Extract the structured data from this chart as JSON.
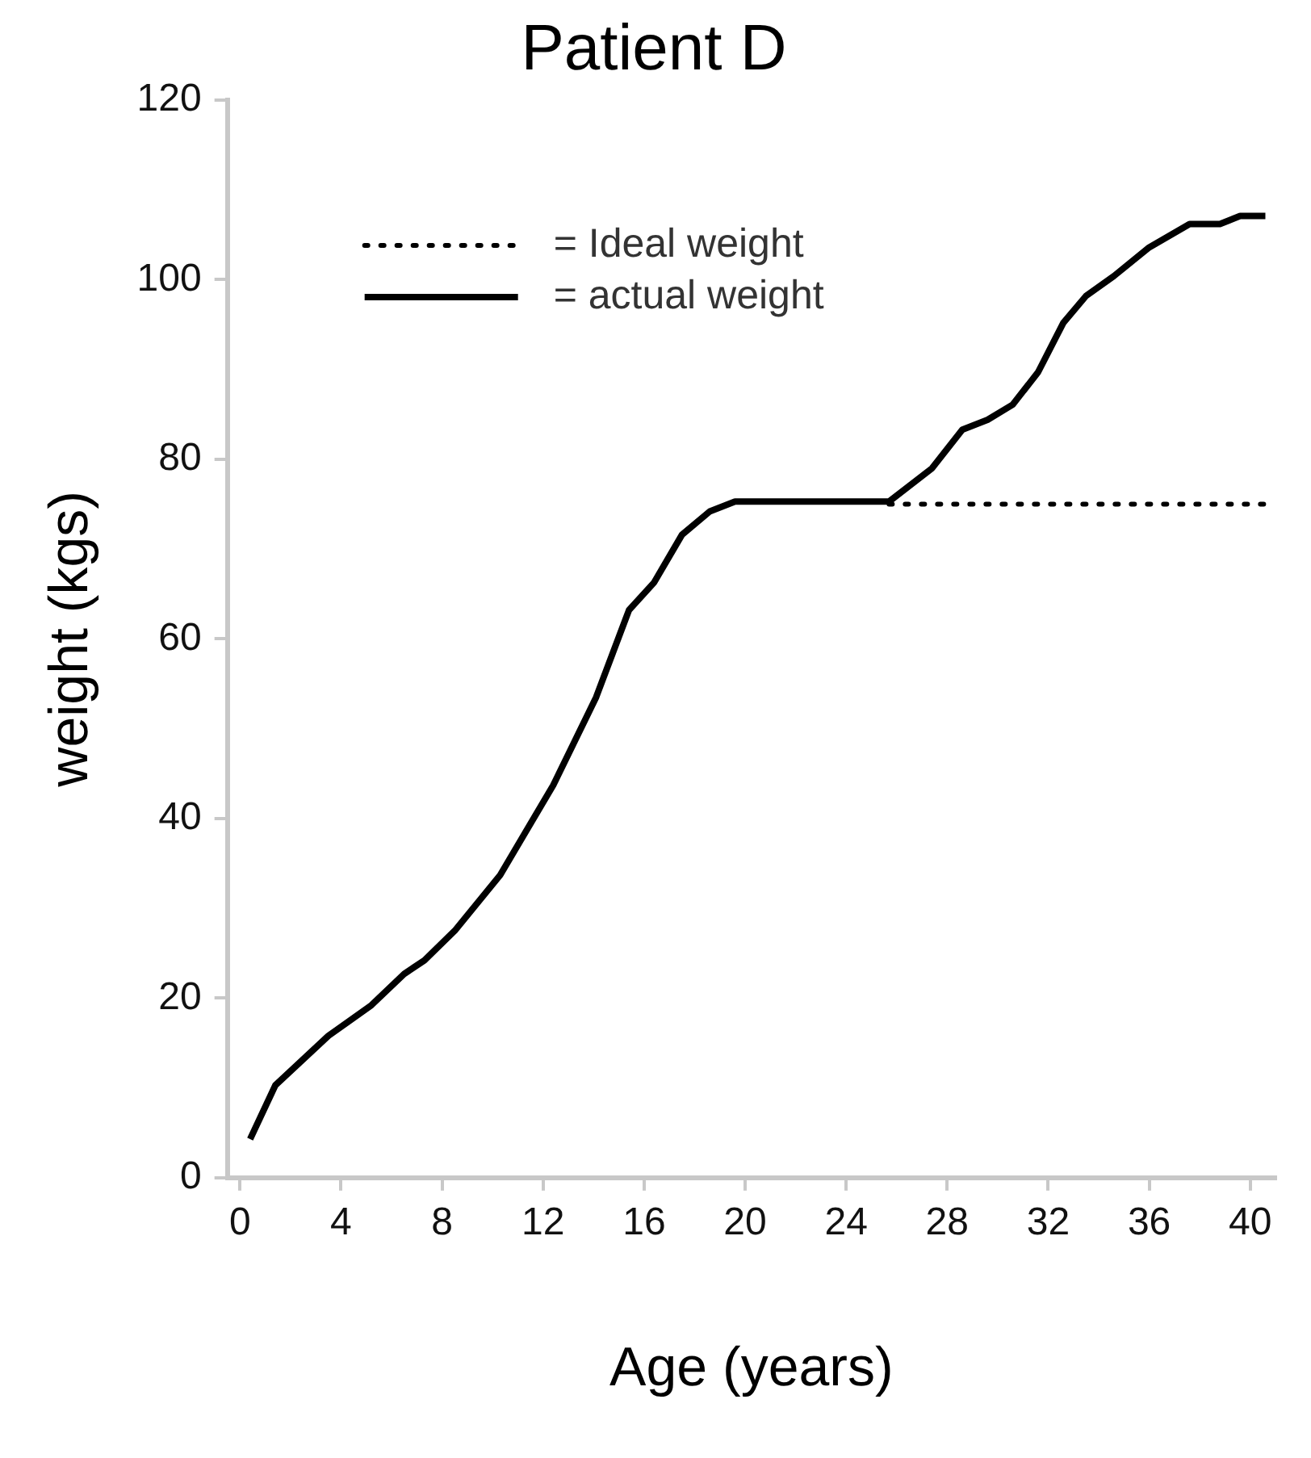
{
  "chart_data": {
    "type": "line",
    "title": "Patient D",
    "xlabel": "Age (years)",
    "ylabel": "weight (kgs)",
    "xlim": [
      -0.5,
      41
    ],
    "xticks": [
      0,
      4,
      8,
      12,
      16,
      20,
      24,
      28,
      32,
      36,
      40
    ],
    "ylim": [
      0,
      120
    ],
    "yticks": [
      0,
      20,
      40,
      60,
      80,
      100,
      120
    ],
    "grid": false,
    "legend": "top left",
    "marker": "none",
    "series": [
      {
        "name": "= Ideal weight",
        "color": "#000000",
        "line_style": "dotted",
        "x": [
          25.7,
          40.6
        ],
        "values": [
          75,
          75
        ]
      },
      {
        "name": "= actual weight",
        "color": "#000000",
        "line_style": "solid",
        "x": [
          0.4,
          1.4,
          3.5,
          5.2,
          6.5,
          7.3,
          8.5,
          10.3,
          12.4,
          14.1,
          15.4,
          16.4,
          17.5,
          18.6,
          19.6,
          24.6,
          25.7,
          27.4,
          28.6,
          29.6,
          30.6,
          31.6,
          32.6,
          33.5,
          34.6,
          36.0,
          37.6,
          38.8,
          39.6,
          40.6
        ],
        "values": [
          4.3,
          10.3,
          15.8,
          19.2,
          22.7,
          24.2,
          27.5,
          33.7,
          43.7,
          53.5,
          63.2,
          66.3,
          71.6,
          74.2,
          75.3,
          75.3,
          75.3,
          79,
          83.3,
          84.4,
          86.1,
          89.7,
          95.2,
          98.2,
          100.4,
          103.6,
          106.2,
          106.2,
          107.1,
          107.1
        ]
      }
    ]
  }
}
